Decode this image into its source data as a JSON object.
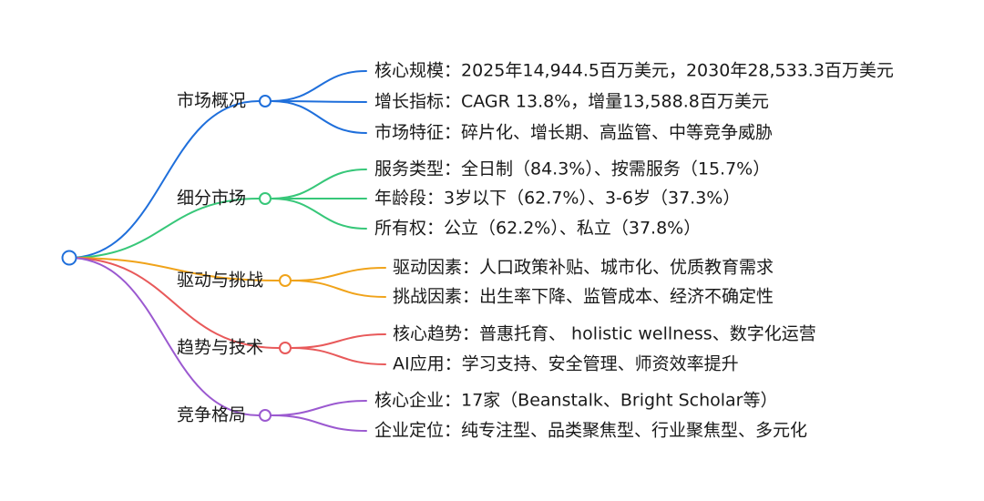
{
  "mindmap": {
    "root_label": "",
    "branches": [
      {
        "label": "市场概况",
        "color": "#1f6fdb",
        "leaves": [
          "核心规模：2025年14,944.5百万美元，2030年28,533.3百万美元",
          "增长指标：CAGR 13.8%，增量13,588.8百万美元",
          "市场特征：碎片化、增长期、高监管、中等竞争威胁"
        ]
      },
      {
        "label": "细分市场",
        "color": "#37c779",
        "leaves": [
          "服务类型：全日制（84.3%）、按需服务（15.7%）",
          "年龄段：3岁以下（62.7%）、3-6岁（37.3%）",
          "所有权：公立（62.2%）、私立（37.8%）"
        ]
      },
      {
        "label": "驱动与挑战",
        "color": "#f0a31a",
        "leaves": [
          "驱动因素：人口政策补贴、城市化、优质教育需求",
          "挑战因素：出生率下降、监管成本、经济不确定性"
        ]
      },
      {
        "label": "趋势与技术",
        "color": "#e8595a",
        "leaves": [
          "核心趋势：普惠托育、 holistic wellness、数字化运营",
          "AI应用：学习支持、安全管理、师资效率提升"
        ]
      },
      {
        "label": "竞争格局",
        "color": "#9b59d0",
        "leaves": [
          "核心企业：17家（Beanstalk、Bright Scholar等）",
          "企业定位：纯专注型、品类聚焦型、行业聚焦型、多元化"
        ]
      }
    ]
  }
}
